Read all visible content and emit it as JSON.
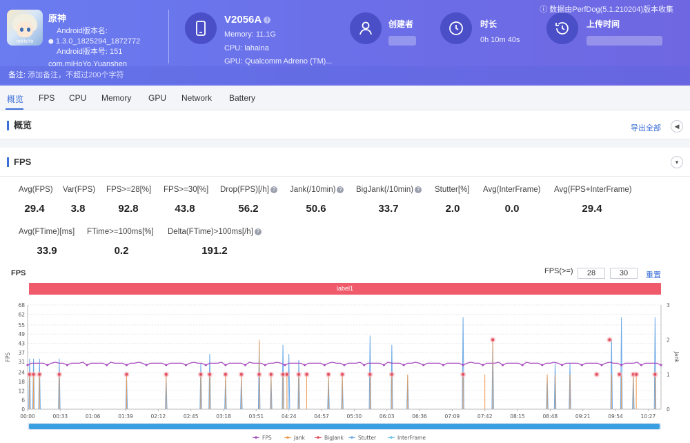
{
  "header": {
    "app": {
      "icon_brand": "miHoYo",
      "name": "原神",
      "version_label": "Android版本名:",
      "version": "1.3.0_1825294_1872772",
      "build_label": "Android版本号: 151",
      "package": "com.miHoYo.Yuanshen"
    },
    "device": {
      "name": "V2056A",
      "memory": "Memory: 11.1G",
      "cpu": "CPU: lahaina",
      "gpu": "GPU: Qualcomm Adreno (TM)..."
    },
    "creator_label": "创建者",
    "duration_label": "时长",
    "duration_value": "0h 10m 40s",
    "upload_label": "上传时间",
    "source_note": "ⓘ 数据由PerfDog(5.1.210204)版本收集",
    "note_label": "备注:",
    "note_placeholder": "添加备注，不超过200个字符"
  },
  "tabs": [
    {
      "label": "概览"
    },
    {
      "label": "FPS"
    },
    {
      "label": "CPU"
    },
    {
      "label": "Memory"
    },
    {
      "label": "GPU"
    },
    {
      "label": "Network"
    },
    {
      "label": "Battery"
    }
  ],
  "overview": {
    "title": "概览",
    "export_label": "导出全部"
  },
  "fps_section": {
    "title": "FPS",
    "stats_row1": [
      {
        "label": "Avg(FPS)",
        "value": "29.4"
      },
      {
        "label": "Var(FPS)",
        "value": "3.8"
      },
      {
        "label": "FPS>=28[%]",
        "value": "92.8"
      },
      {
        "label": "FPS>=30[%]",
        "value": "43.8"
      },
      {
        "label": "Drop(FPS)[/h]",
        "value": "56.2"
      },
      {
        "label": "Jank(/10min)",
        "value": "50.6"
      },
      {
        "label": "BigJank(/10min)",
        "value": "33.7"
      },
      {
        "label": "Stutter[%]",
        "value": "2.0"
      },
      {
        "label": "Avg(InterFrame)",
        "value": "0.0"
      },
      {
        "label": "Avg(FPS+InterFrame)",
        "value": "29.4"
      }
    ],
    "stats_row2": [
      {
        "label": "Avg(FTime)[ms]",
        "value": "33.9"
      },
      {
        "label": "FTime>=100ms[%]",
        "value": "0.2"
      },
      {
        "label": "Delta(FTime)>100ms[/h]",
        "value": "191.2"
      }
    ],
    "chart_title": "FPS",
    "threshold_label": "FPS(>=)",
    "threshold_1": "28",
    "threshold_2": "30",
    "reset_label": "重置",
    "label_bar": "label1"
  },
  "colors": {
    "header": "#6b6fe8",
    "accent": "#3b6fd8",
    "fps": "#a64bbd",
    "jank": "#f29a4a",
    "bigjank": "#e04b5b",
    "stutter": "#6aa8e6",
    "interframe": "#6cc3ea",
    "label_bar": "#ef5b6a"
  },
  "chart_data": {
    "type": "line",
    "x": [
      "00:00",
      "00:33",
      "01:06",
      "01:39",
      "02:12",
      "02:45",
      "03:18",
      "03:51",
      "04:24",
      "04:57",
      "05:30",
      "06:03",
      "06:36",
      "07:09",
      "07:42",
      "08:15",
      "08:48",
      "09:21",
      "09:54",
      "10:27"
    ],
    "ylabel": "FPS",
    "y2label": "Jank",
    "ylim": [
      0,
      68
    ],
    "y2lim": [
      0,
      3
    ],
    "yticks": [
      0,
      6,
      12,
      18,
      24,
      31,
      37,
      43,
      49,
      55,
      62,
      68
    ],
    "y2ticks": [
      0,
      1,
      2,
      3
    ],
    "x_range_seconds": [
      0,
      640
    ],
    "series": [
      {
        "name": "FPS",
        "baseline": 30,
        "dips_at_seconds": [
          0,
          4,
          10,
          18,
          24,
          30,
          60,
          168,
          210,
          270,
          300,
          330,
          360,
          370,
          400,
          430,
          470,
          520,
          560,
          600,
          640
        ]
      },
      {
        "name": "Jank",
        "events": [
          {
            "t": 2,
            "v": 1
          },
          {
            "t": 6,
            "v": 1
          },
          {
            "t": 12,
            "v": 1
          },
          {
            "t": 32,
            "v": 1
          },
          {
            "t": 100,
            "v": 1
          },
          {
            "t": 140,
            "v": 1
          },
          {
            "t": 175,
            "v": 1
          },
          {
            "t": 184,
            "v": 1
          },
          {
            "t": 200,
            "v": 1
          },
          {
            "t": 216,
            "v": 1
          },
          {
            "t": 234,
            "v": 2
          },
          {
            "t": 246,
            "v": 1
          },
          {
            "t": 258,
            "v": 1
          },
          {
            "t": 262,
            "v": 1
          },
          {
            "t": 274,
            "v": 1
          },
          {
            "t": 282,
            "v": 1
          },
          {
            "t": 304,
            "v": 1
          },
          {
            "t": 318,
            "v": 1
          },
          {
            "t": 346,
            "v": 1
          },
          {
            "t": 368,
            "v": 1
          },
          {
            "t": 384,
            "v": 1
          },
          {
            "t": 440,
            "v": 1
          },
          {
            "t": 462,
            "v": 1
          },
          {
            "t": 470,
            "v": 2
          },
          {
            "t": 525,
            "v": 1
          },
          {
            "t": 533,
            "v": 1
          },
          {
            "t": 548,
            "v": 1
          },
          {
            "t": 590,
            "v": 1
          },
          {
            "t": 600,
            "v": 1
          },
          {
            "t": 612,
            "v": 1
          },
          {
            "t": 615,
            "v": 1
          },
          {
            "t": 634,
            "v": 1
          }
        ]
      },
      {
        "name": "BigJank",
        "events": [
          {
            "t": 2,
            "v": 1
          },
          {
            "t": 6,
            "v": 1
          },
          {
            "t": 12,
            "v": 1
          },
          {
            "t": 32,
            "v": 1
          },
          {
            "t": 100,
            "v": 1
          },
          {
            "t": 140,
            "v": 1
          },
          {
            "t": 175,
            "v": 1
          },
          {
            "t": 184,
            "v": 1
          },
          {
            "t": 200,
            "v": 1
          },
          {
            "t": 216,
            "v": 1
          },
          {
            "t": 234,
            "v": 1
          },
          {
            "t": 246,
            "v": 1
          },
          {
            "t": 258,
            "v": 1
          },
          {
            "t": 262,
            "v": 1
          },
          {
            "t": 274,
            "v": 1
          },
          {
            "t": 282,
            "v": 1
          },
          {
            "t": 304,
            "v": 1
          },
          {
            "t": 318,
            "v": 1
          },
          {
            "t": 346,
            "v": 1
          },
          {
            "t": 368,
            "v": 1
          },
          {
            "t": 440,
            "v": 1
          },
          {
            "t": 470,
            "v": 2
          },
          {
            "t": 575,
            "v": 1
          },
          {
            "t": 588,
            "v": 2
          },
          {
            "t": 598,
            "v": 1
          },
          {
            "t": 612,
            "v": 1
          },
          {
            "t": 615,
            "v": 1
          },
          {
            "t": 634,
            "v": 1
          }
        ]
      },
      {
        "name": "Stutter",
        "spikes": [
          {
            "t": 2,
            "v": 33
          },
          {
            "t": 6,
            "v": 33
          },
          {
            "t": 12,
            "v": 33
          },
          {
            "t": 32,
            "v": 33
          },
          {
            "t": 100,
            "v": 22
          },
          {
            "t": 140,
            "v": 22
          },
          {
            "t": 175,
            "v": 30
          },
          {
            "t": 184,
            "v": 36
          },
          {
            "t": 200,
            "v": 22
          },
          {
            "t": 216,
            "v": 22
          },
          {
            "t": 234,
            "v": 44
          },
          {
            "t": 246,
            "v": 22
          },
          {
            "t": 258,
            "v": 42
          },
          {
            "t": 264,
            "v": 36
          },
          {
            "t": 274,
            "v": 32
          },
          {
            "t": 304,
            "v": 22
          },
          {
            "t": 318,
            "v": 22
          },
          {
            "t": 346,
            "v": 48
          },
          {
            "t": 368,
            "v": 42
          },
          {
            "t": 384,
            "v": 22
          },
          {
            "t": 440,
            "v": 60
          },
          {
            "t": 470,
            "v": 46
          },
          {
            "t": 525,
            "v": 22
          },
          {
            "t": 533,
            "v": 30
          },
          {
            "t": 548,
            "v": 30
          },
          {
            "t": 590,
            "v": 46
          },
          {
            "t": 600,
            "v": 60
          },
          {
            "t": 612,
            "v": 24
          },
          {
            "t": 634,
            "v": 60
          }
        ]
      },
      {
        "name": "InterFrame",
        "spikes": []
      }
    ],
    "grid": true,
    "legend": "bottom"
  }
}
